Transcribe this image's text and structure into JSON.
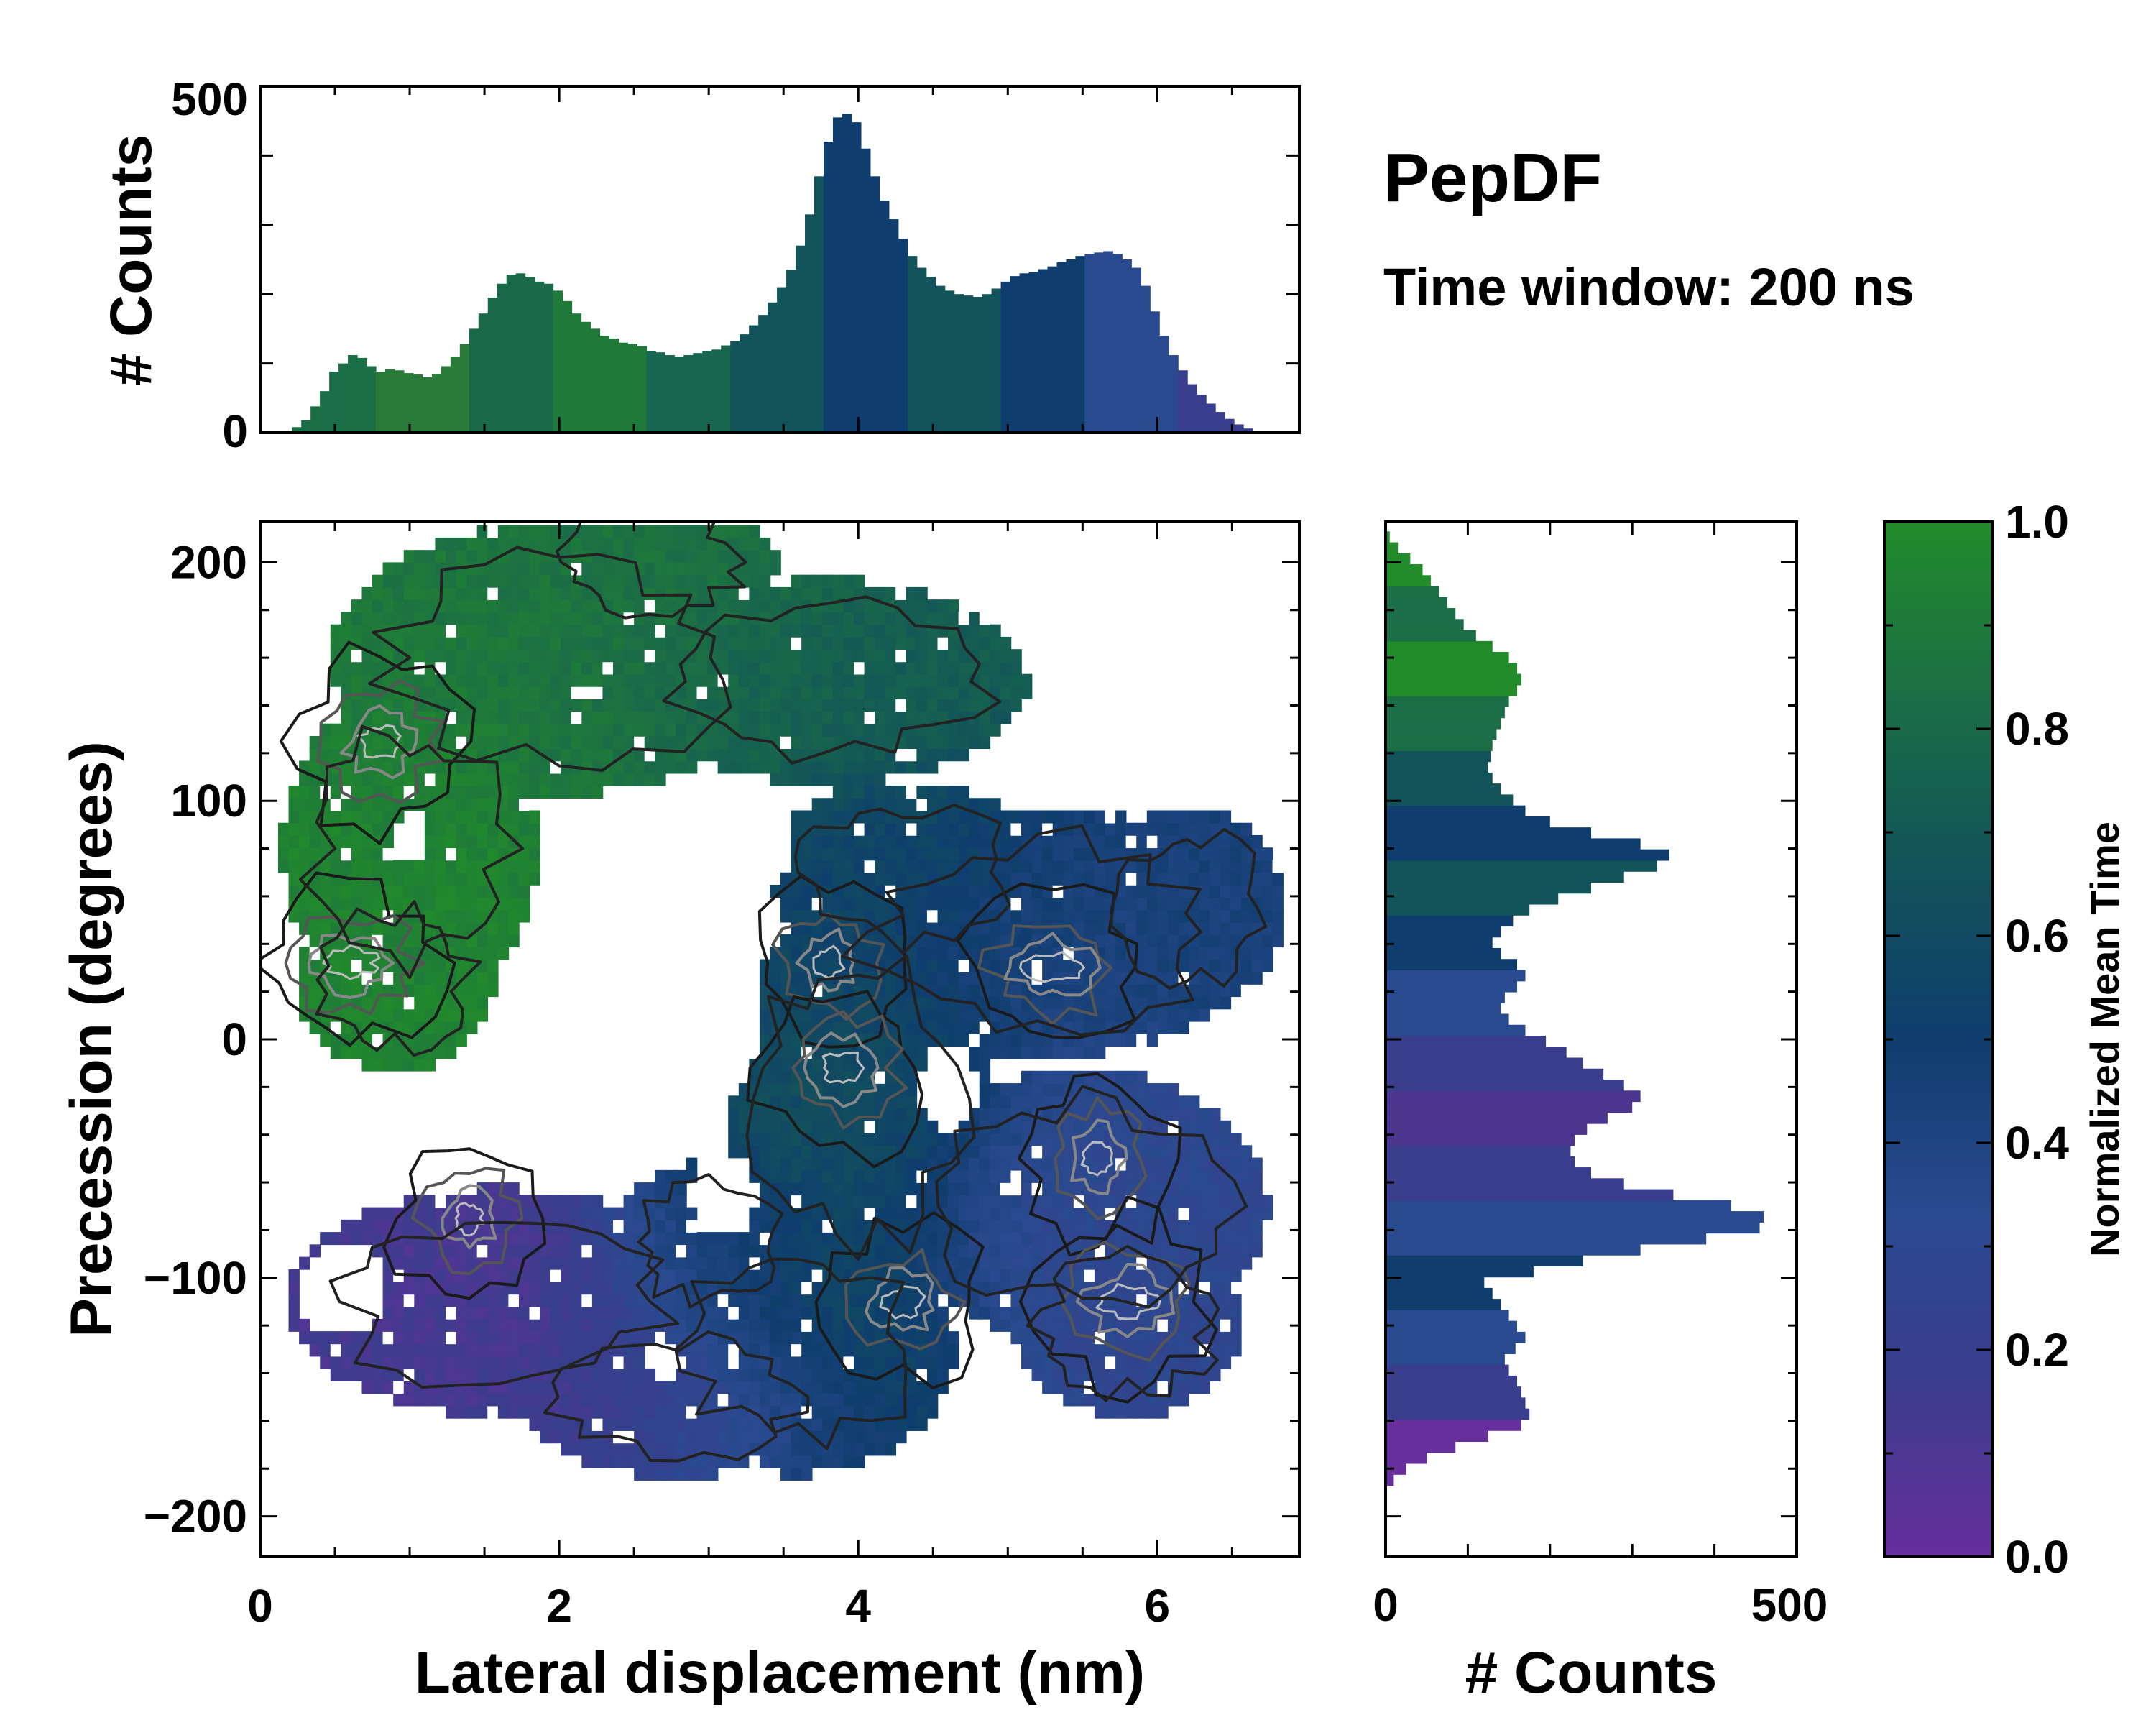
{
  "chart_data": [
    {
      "type": "heatmap",
      "panel": "main",
      "title": "PepDF",
      "subtitle": "Time window: 200 ns",
      "xlabel": "Lateral displacement (nm)",
      "ylabel": "Precession (degrees)",
      "xlim": [
        0,
        6.95
      ],
      "ylim": [
        -217,
        217
      ],
      "xticks": [
        0,
        2,
        4,
        6
      ],
      "yticks": [
        -200,
        -100,
        0,
        100,
        200
      ],
      "ytick_labels": [
        "−200",
        "−100",
        "0",
        "100",
        "200"
      ],
      "color_variable": "Normalized Mean Time",
      "colormap": [
        "#662f9c",
        "#3a3d8c",
        "#2a4a8f",
        "#0f3d6e",
        "#125459",
        "#1b6e45",
        "#228b2a"
      ],
      "regions": [
        {
          "name": "upper-left green lobe",
          "x": [
            0.2,
            4.2
          ],
          "y": [
            10,
            215
          ],
          "mean_time": 0.9
        },
        {
          "name": "upper-right teal/blue lobe",
          "x": [
            3.2,
            6.9
          ],
          "y": [
            -30,
            115
          ],
          "mean_time": 0.55
        },
        {
          "name": "central teal region",
          "x": [
            3.0,
            5.0
          ],
          "y": [
            -180,
            10
          ],
          "mean_time": 0.65
        },
        {
          "name": "lower-right blue-purple lobe",
          "x": [
            4.5,
            6.8
          ],
          "y": [
            -170,
            0
          ],
          "mean_time": 0.3
        },
        {
          "name": "lower-left purple lobe",
          "x": [
            0.2,
            4.0
          ],
          "y": [
            -185,
            -60
          ],
          "mean_time": 0.12
        }
      ],
      "density_peaks": [
        {
          "x": 3.8,
          "y": 32
        },
        {
          "x": 3.9,
          "y": -12
        },
        {
          "x": 5.3,
          "y": 30
        },
        {
          "x": 5.6,
          "y": -50
        },
        {
          "x": 4.3,
          "y": -110
        },
        {
          "x": 5.8,
          "y": -110
        },
        {
          "x": 1.4,
          "y": -75
        },
        {
          "x": 0.8,
          "y": 125
        },
        {
          "x": 0.6,
          "y": 32
        }
      ]
    },
    {
      "type": "bar",
      "panel": "top-marginal",
      "xlabel": "",
      "ylabel": "# Counts",
      "xlim": [
        0,
        6.95
      ],
      "ylim": [
        0,
        500
      ],
      "yticks": [
        0,
        500
      ],
      "bin_range": [
        0.15,
        6.7
      ],
      "values": [
        2,
        8,
        18,
        38,
        60,
        88,
        100,
        112,
        108,
        96,
        88,
        92,
        90,
        86,
        84,
        80,
        85,
        96,
        110,
        128,
        150,
        172,
        195,
        215,
        228,
        230,
        225,
        218,
        215,
        205,
        190,
        172,
        160,
        150,
        140,
        136,
        130,
        128,
        125,
        118,
        116,
        112,
        110,
        112,
        115,
        118,
        120,
        126,
        132,
        142,
        155,
        170,
        188,
        210,
        235,
        270,
        315,
        370,
        420,
        455,
        460,
        448,
        410,
        370,
        335,
        308,
        280,
        255,
        238,
        225,
        212,
        205,
        200,
        198,
        196,
        200,
        208,
        218,
        226,
        230,
        232,
        236,
        240,
        246,
        250,
        255,
        258,
        260,
        262,
        258,
        250,
        238,
        212,
        175,
        140,
        112,
        90,
        70,
        55,
        42,
        30,
        20,
        12,
        6,
        2
      ],
      "colors": [
        "#1b6e45",
        "#2a7a3a",
        "#1a6a4a",
        "#1f7a3a",
        "#186650",
        "#125459",
        "#0f3d6e",
        "#125459",
        "#0f3d6e",
        "#2a4a8f",
        "#3a3d8c"
      ]
    },
    {
      "type": "bar",
      "panel": "right-marginal",
      "orientation": "horizontal",
      "xlabel": "# Counts",
      "ylabel": "",
      "xlim": [
        0,
        500
      ],
      "ylim": [
        -217,
        217
      ],
      "xticks": [
        0,
        500
      ],
      "bin_range": [
        -187,
        213
      ],
      "values": [
        10,
        25,
        50,
        85,
        125,
        165,
        175,
        170,
        165,
        160,
        150,
        145,
        158,
        170,
        160,
        150,
        140,
        130,
        120,
        180,
        240,
        310,
        390,
        455,
        460,
        420,
        350,
        290,
        250,
        230,
        225,
        230,
        245,
        270,
        300,
        310,
        290,
        265,
        240,
        220,
        195,
        170,
        150,
        140,
        145,
        160,
        170,
        160,
        140,
        130,
        140,
        155,
        175,
        210,
        250,
        290,
        330,
        345,
        310,
        250,
        200,
        170,
        155,
        140,
        130,
        125,
        128,
        130,
        135,
        140,
        145,
        150,
        160,
        165,
        160,
        150,
        130,
        110,
        95,
        85,
        75,
        65,
        55,
        45,
        30,
        15,
        5
      ],
      "colors_bottom_to_top": [
        "#662f9c",
        "#3a3d8c",
        "#2a4a8f",
        "#0f3d6e",
        "#2a4a8f",
        "#3a3d8c",
        "#4a358f",
        "#3a3d8c",
        "#2a4a8f",
        "#0f3d6e",
        "#125459",
        "#0f3d6e",
        "#125459",
        "#1b6e45",
        "#228b2a",
        "#1b6e45",
        "#228b2a"
      ]
    },
    {
      "type": "colorbar",
      "label": "Normalized Mean Time",
      "ticks": [
        "0.0",
        "0.2",
        "0.4",
        "0.6",
        "0.8",
        "1.0"
      ],
      "range": [
        0,
        1
      ],
      "colormap": [
        "#662f9c",
        "#3a3d8c",
        "#2a4a8f",
        "#0f3d6e",
        "#125459",
        "#1b6e45",
        "#228b2a"
      ]
    }
  ]
}
